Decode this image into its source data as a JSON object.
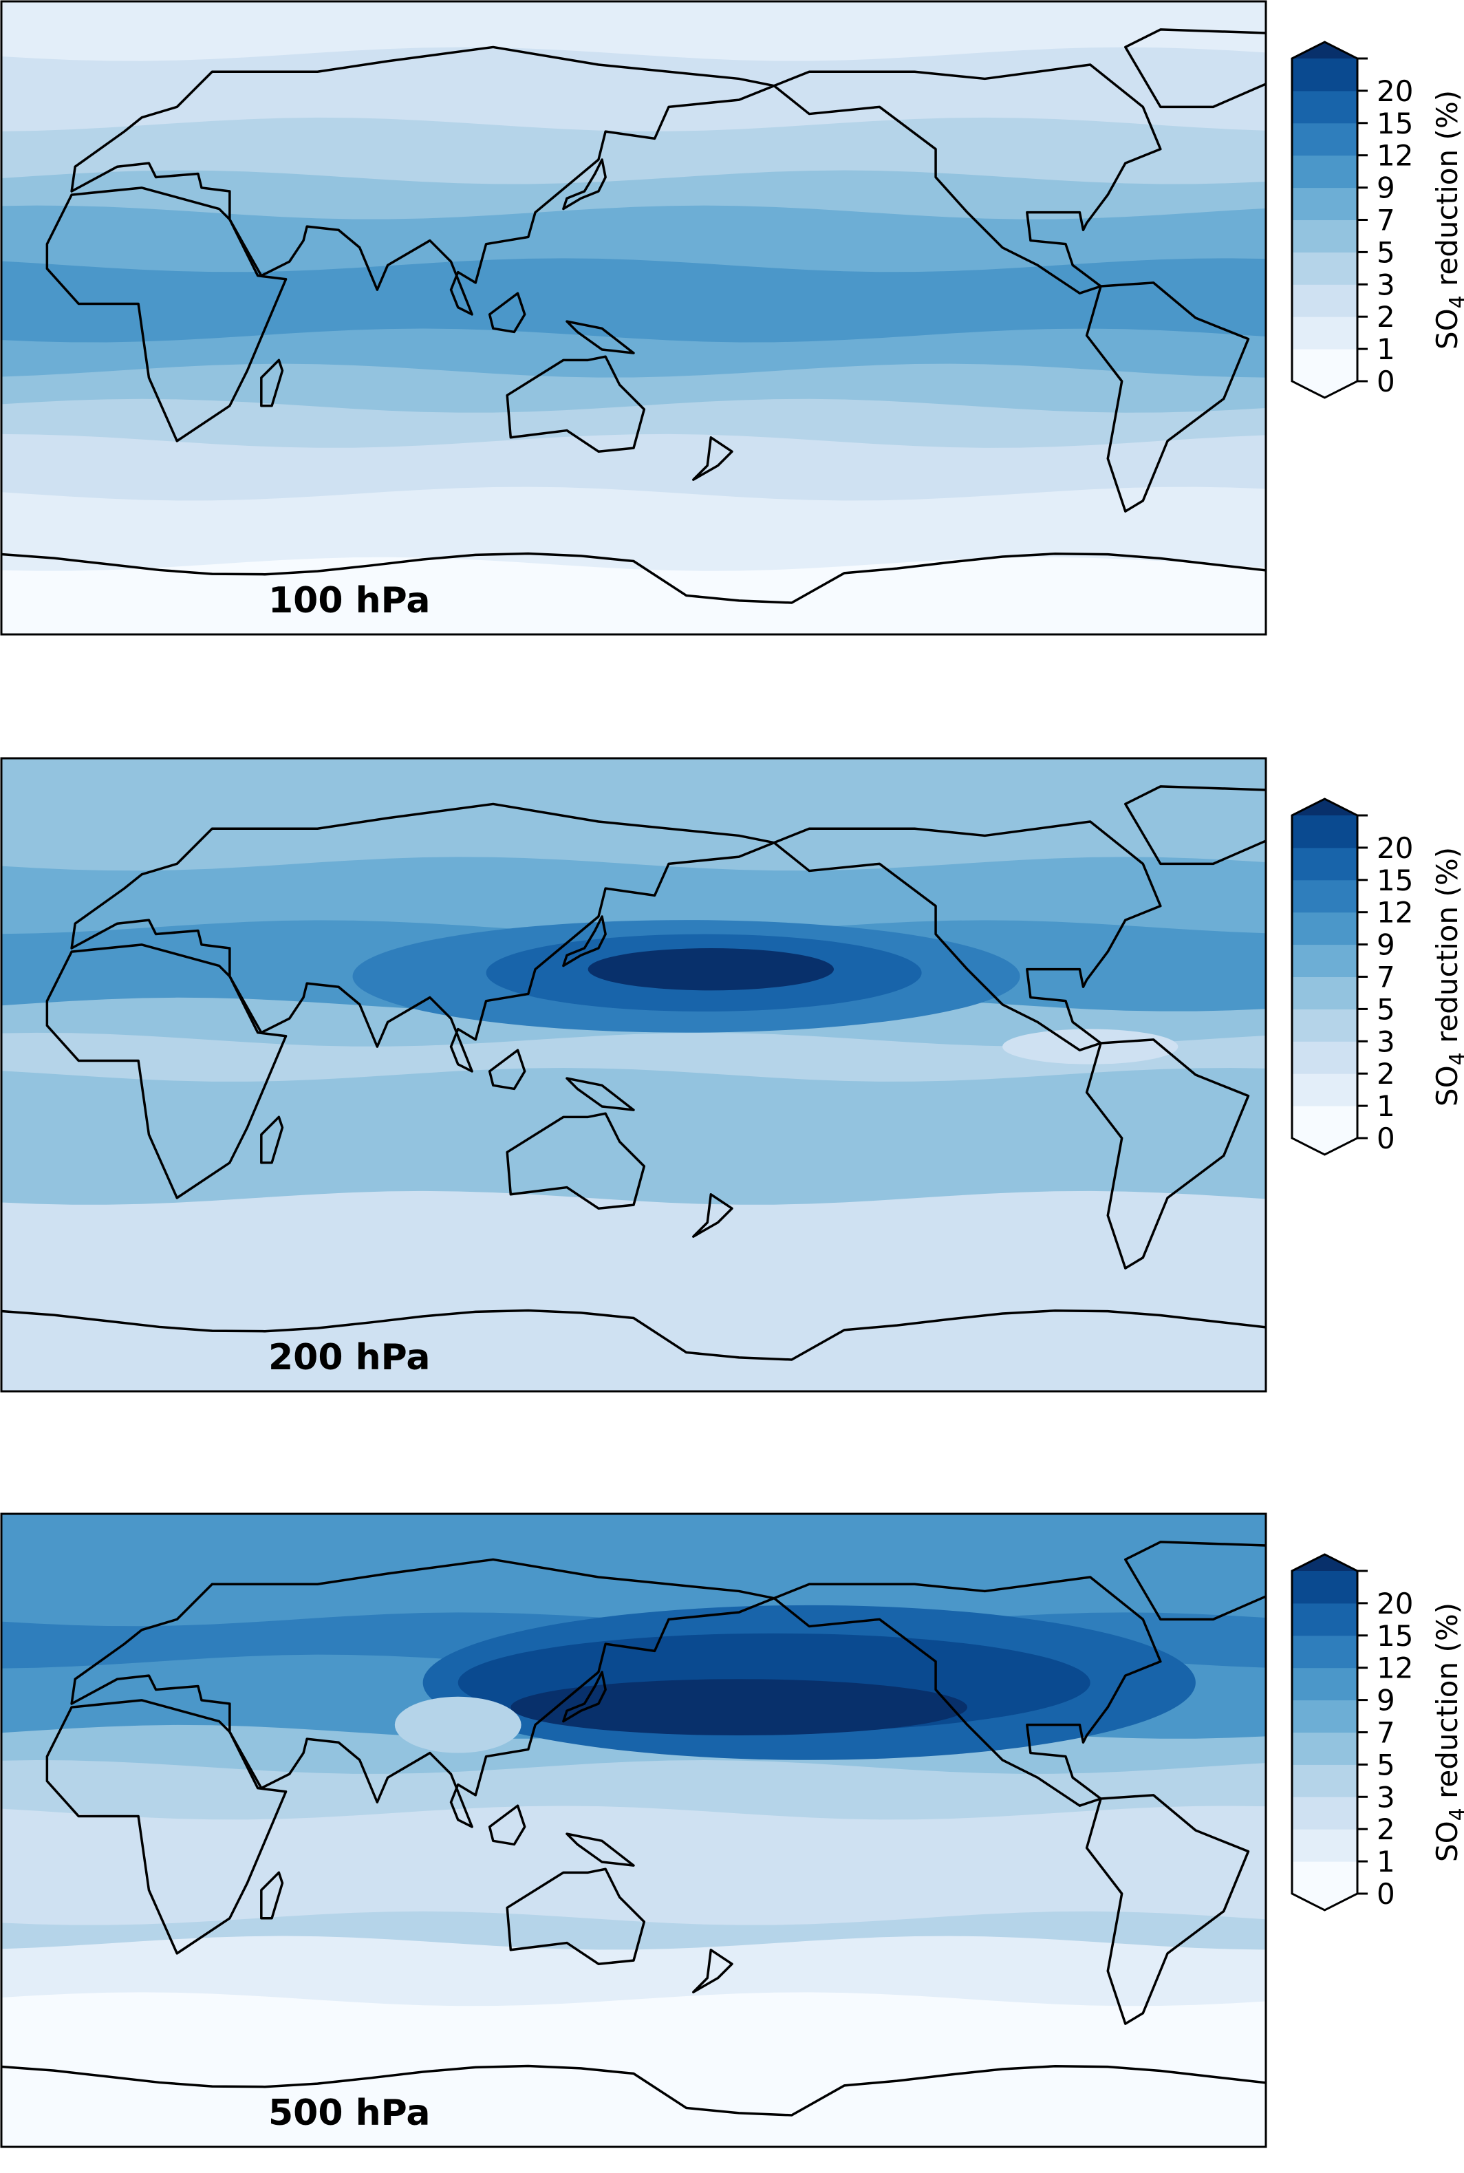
{
  "colorbar": {
    "levels": [
      0,
      1,
      2,
      3,
      5,
      7,
      9,
      12,
      15,
      20
    ],
    "tick_labels": [
      "0",
      "1",
      "2",
      "3",
      "5",
      "7",
      "9",
      "12",
      "15",
      "20"
    ],
    "colors": [
      "#f7fbff",
      "#e3eef9",
      "#cfe1f2",
      "#b5d4e9",
      "#93c3df",
      "#6daed5",
      "#4b97c9",
      "#2f7ebc",
      "#1864aa",
      "#0a4a90",
      "#08306b"
    ],
    "extend": "both",
    "label_main": "SO",
    "label_sub": "4",
    "label_rest": " reduction (%)"
  },
  "panels": [
    {
      "title": "100 hPa",
      "bands": [
        [
          90,
          1
        ],
        [
          75,
          2
        ],
        [
          55,
          3
        ],
        [
          40,
          4
        ],
        [
          30,
          5
        ],
        [
          15,
          6
        ],
        [
          -5,
          5
        ],
        [
          -15,
          4
        ],
        [
          -25,
          3
        ],
        [
          -35,
          2
        ],
        [
          -50,
          1
        ],
        [
          -70,
          0
        ]
      ],
      "blobs": []
    },
    {
      "title": "200 hPa",
      "bands": [
        [
          90,
          4
        ],
        [
          60,
          5
        ],
        [
          42,
          6
        ],
        [
          20,
          4
        ],
        [
          10,
          3
        ],
        [
          0,
          4
        ],
        [
          -35,
          2
        ]
      ],
      "blobs": [
        [
          165,
          28,
          95,
          16,
          7
        ],
        [
          170,
          29,
          62,
          11,
          8
        ],
        [
          172,
          30,
          35,
          6,
          10
        ],
        [
          280,
          8,
          25,
          5,
          2
        ]
      ]
    },
    {
      "title": "500 hPa",
      "bands": [
        [
          90,
          6
        ],
        [
          60,
          7
        ],
        [
          48,
          6
        ],
        [
          28,
          4
        ],
        [
          18,
          3
        ],
        [
          5,
          2
        ],
        [
          -25,
          3
        ],
        [
          -32,
          1
        ],
        [
          -48,
          0
        ]
      ],
      "blobs": [
        [
          200,
          42,
          110,
          22,
          8
        ],
        [
          190,
          42,
          90,
          14,
          9
        ],
        [
          180,
          35,
          65,
          8,
          10
        ],
        [
          100,
          30,
          18,
          8,
          3
        ]
      ]
    }
  ]
}
